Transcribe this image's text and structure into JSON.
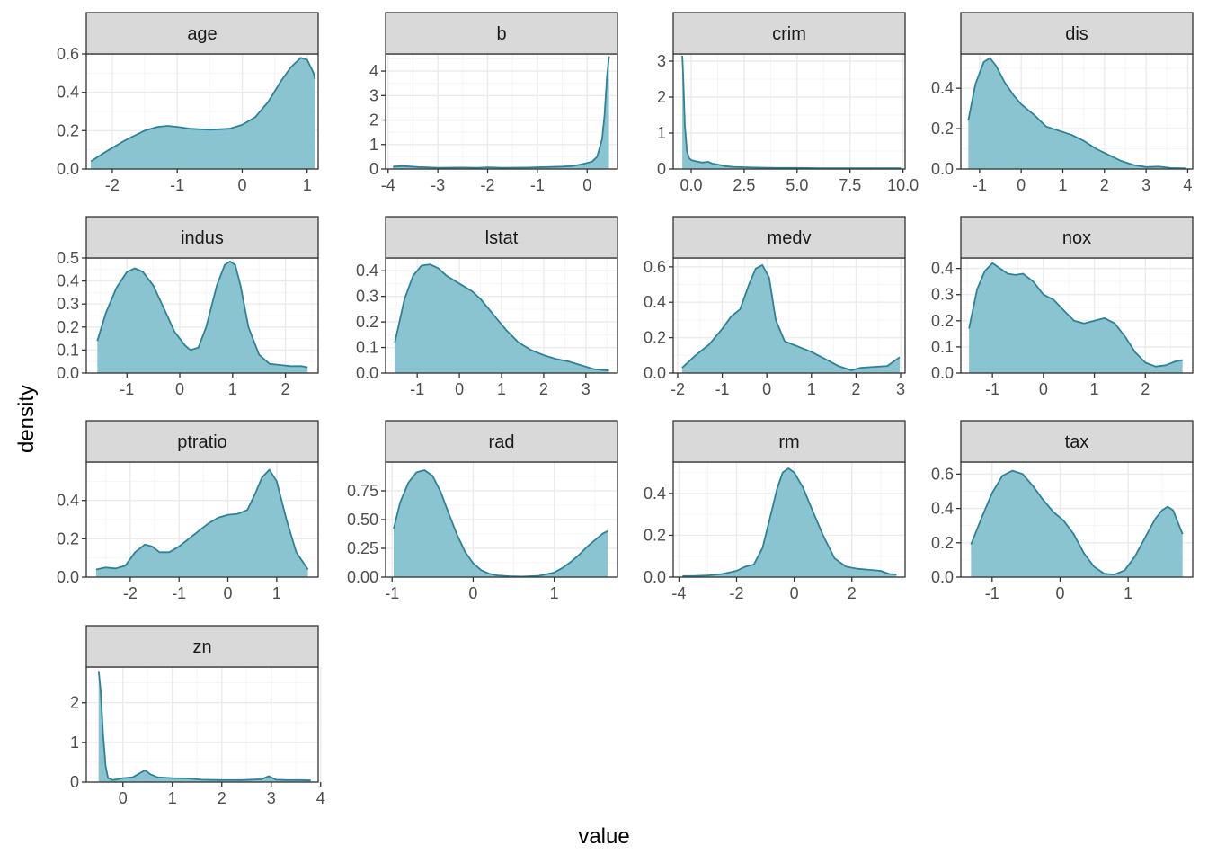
{
  "xlabel": "value",
  "ylabel": "density",
  "colors": {
    "fill": "#8BC4D1",
    "line": "#2E8196",
    "strip": "#D9D9D9",
    "border": "#333333",
    "grid_major": "#EBEBEB",
    "grid_minor": "#F5F5F5",
    "text": "#4D4D4D"
  },
  "chart_data": [
    {
      "type": "area",
      "title": "age",
      "xlim": [
        -2.4,
        1.17
      ],
      "ylim": [
        0,
        0.6
      ],
      "xticks": [
        -2,
        -1,
        0,
        1
      ],
      "xtick_labels": [
        "-2",
        "-1",
        "0",
        "1"
      ],
      "yticks": [
        0,
        0.2,
        0.4,
        0.6
      ],
      "ytick_labels": [
        "0.0",
        "0.2",
        "0.4",
        "0.6"
      ],
      "x": [
        -2.33,
        -2.1,
        -1.8,
        -1.5,
        -1.3,
        -1.15,
        -1.0,
        -0.8,
        -0.5,
        -0.2,
        0.0,
        0.2,
        0.4,
        0.6,
        0.75,
        0.9,
        1.0,
        1.1,
        1.12
      ],
      "y": [
        0.04,
        0.09,
        0.15,
        0.2,
        0.22,
        0.225,
        0.22,
        0.21,
        0.205,
        0.21,
        0.23,
        0.27,
        0.35,
        0.46,
        0.53,
        0.58,
        0.57,
        0.5,
        0.47
      ]
    },
    {
      "type": "area",
      "title": "b",
      "xlim": [
        -4.05,
        0.61
      ],
      "ylim": [
        0,
        4.7
      ],
      "xticks": [
        -4,
        -3,
        -2,
        -1,
        0
      ],
      "xtick_labels": [
        "-4",
        "-3",
        "-2",
        "-1",
        "0"
      ],
      "yticks": [
        0,
        1,
        2,
        3,
        4
      ],
      "ytick_labels": [
        "0",
        "1",
        "2",
        "3",
        "4"
      ],
      "x": [
        -3.9,
        -3.7,
        -3.4,
        -3.0,
        -2.5,
        -2.2,
        -2.0,
        -1.7,
        -1.2,
        -0.8,
        -0.5,
        -0.3,
        -0.1,
        0.0,
        0.1,
        0.2,
        0.3,
        0.35,
        0.4,
        0.44
      ],
      "y": [
        0.1,
        0.12,
        0.08,
        0.05,
        0.06,
        0.05,
        0.07,
        0.05,
        0.06,
        0.08,
        0.1,
        0.12,
        0.2,
        0.25,
        0.3,
        0.5,
        1.2,
        2.2,
        3.8,
        4.6
      ]
    },
    {
      "type": "area",
      "title": "crim",
      "xlim": [
        -0.85,
        10.1
      ],
      "ylim": [
        0,
        3.2
      ],
      "xticks": [
        0,
        2.5,
        5,
        7.5,
        10
      ],
      "xtick_labels": [
        "0.0",
        "2.5",
        "5.0",
        "7.5",
        "10.0"
      ],
      "yticks": [
        0,
        1,
        2,
        3
      ],
      "ytick_labels": [
        "0",
        "1",
        "2",
        "3"
      ],
      "x": [
        -0.42,
        -0.38,
        -0.3,
        -0.2,
        -0.1,
        0.0,
        0.2,
        0.5,
        0.8,
        1.0,
        1.3,
        1.6,
        2.0,
        2.5,
        3.0,
        4.0,
        5.0,
        6.0,
        7.0,
        8.0,
        9.0,
        9.9
      ],
      "y": [
        3.15,
        2.6,
        1.2,
        0.5,
        0.3,
        0.25,
        0.22,
        0.18,
        0.2,
        0.15,
        0.12,
        0.08,
        0.06,
        0.05,
        0.04,
        0.03,
        0.03,
        0.02,
        0.02,
        0.02,
        0.02,
        0.02
      ]
    },
    {
      "type": "area",
      "title": "dis",
      "xlim": [
        -1.45,
        4.12
      ],
      "ylim": [
        0,
        0.57
      ],
      "xticks": [
        -1,
        0,
        1,
        2,
        3,
        4
      ],
      "xtick_labels": [
        "-1",
        "0",
        "1",
        "2",
        "3",
        "4"
      ],
      "yticks": [
        0,
        0.2,
        0.4
      ],
      "ytick_labels": [
        "0.0",
        "0.2",
        "0.4"
      ],
      "x": [
        -1.27,
        -1.1,
        -0.9,
        -0.75,
        -0.6,
        -0.4,
        -0.2,
        0.0,
        0.3,
        0.6,
        0.9,
        1.2,
        1.5,
        1.8,
        2.1,
        2.4,
        2.7,
        3.0,
        3.3,
        3.6,
        3.96
      ],
      "y": [
        0.24,
        0.42,
        0.53,
        0.55,
        0.51,
        0.43,
        0.37,
        0.32,
        0.27,
        0.21,
        0.19,
        0.17,
        0.14,
        0.1,
        0.07,
        0.04,
        0.02,
        0.01,
        0.012,
        0.005,
        0.003
      ]
    },
    {
      "type": "area",
      "title": "indus",
      "xlim": [
        -1.77,
        2.62
      ],
      "ylim": [
        0,
        0.5
      ],
      "xticks": [
        -1,
        0,
        1,
        2
      ],
      "xtick_labels": [
        "-1",
        "0",
        "1",
        "2"
      ],
      "yticks": [
        0,
        0.1,
        0.2,
        0.3,
        0.4,
        0.5
      ],
      "ytick_labels": [
        "0.0",
        "0.1",
        "0.2",
        "0.3",
        "0.4",
        "0.5"
      ],
      "x": [
        -1.56,
        -1.4,
        -1.2,
        -1.0,
        -0.85,
        -0.7,
        -0.5,
        -0.3,
        -0.1,
        0.1,
        0.2,
        0.35,
        0.5,
        0.7,
        0.85,
        0.95,
        1.05,
        1.15,
        1.3,
        1.5,
        1.7,
        1.9,
        2.1,
        2.3,
        2.42
      ],
      "y": [
        0.14,
        0.26,
        0.37,
        0.44,
        0.455,
        0.44,
        0.38,
        0.28,
        0.18,
        0.12,
        0.1,
        0.11,
        0.2,
        0.38,
        0.47,
        0.485,
        0.47,
        0.38,
        0.2,
        0.08,
        0.04,
        0.035,
        0.03,
        0.03,
        0.025
      ]
    },
    {
      "type": "area",
      "title": "lstat",
      "xlim": [
        -1.75,
        3.75
      ],
      "ylim": [
        0,
        0.45
      ],
      "xticks": [
        -1,
        0,
        1,
        2,
        3
      ],
      "xtick_labels": [
        "-1",
        "0",
        "1",
        "2",
        "3"
      ],
      "yticks": [
        0,
        0.1,
        0.2,
        0.3,
        0.4
      ],
      "ytick_labels": [
        "0.0",
        "0.1",
        "0.2",
        "0.3",
        "0.4"
      ],
      "x": [
        -1.53,
        -1.3,
        -1.1,
        -0.9,
        -0.7,
        -0.5,
        -0.3,
        -0.1,
        0.1,
        0.3,
        0.5,
        0.8,
        1.1,
        1.4,
        1.7,
        2.0,
        2.3,
        2.6,
        2.9,
        3.2,
        3.55
      ],
      "y": [
        0.12,
        0.29,
        0.38,
        0.42,
        0.425,
        0.41,
        0.38,
        0.36,
        0.34,
        0.32,
        0.29,
        0.23,
        0.17,
        0.12,
        0.09,
        0.07,
        0.055,
        0.045,
        0.03,
        0.015,
        0.01
      ]
    },
    {
      "type": "area",
      "title": "medv",
      "xlim": [
        -2.1,
        3.1
      ],
      "ylim": [
        0,
        0.65
      ],
      "xticks": [
        -2,
        -1,
        0,
        1,
        2,
        3
      ],
      "xtick_labels": [
        "-2",
        "-1",
        "0",
        "1",
        "2",
        "3"
      ],
      "yticks": [
        0,
        0.2,
        0.4,
        0.6
      ],
      "ytick_labels": [
        "0.0",
        "0.2",
        "0.4",
        "0.6"
      ],
      "x": [
        -1.9,
        -1.6,
        -1.3,
        -1.0,
        -0.8,
        -0.6,
        -0.4,
        -0.25,
        -0.1,
        0.05,
        0.2,
        0.4,
        0.7,
        1.0,
        1.3,
        1.6,
        1.9,
        2.1,
        2.4,
        2.7,
        2.98
      ],
      "y": [
        0.03,
        0.1,
        0.16,
        0.25,
        0.32,
        0.36,
        0.5,
        0.59,
        0.61,
        0.54,
        0.3,
        0.18,
        0.15,
        0.12,
        0.08,
        0.04,
        0.015,
        0.03,
        0.035,
        0.04,
        0.09
      ]
    },
    {
      "type": "area",
      "title": "nox",
      "xlim": [
        -1.62,
        2.93
      ],
      "ylim": [
        0,
        0.44
      ],
      "xticks": [
        -1,
        0,
        1,
        2
      ],
      "xtick_labels": [
        "-1",
        "0",
        "1",
        "2"
      ],
      "yticks": [
        0,
        0.1,
        0.2,
        0.3,
        0.4
      ],
      "ytick_labels": [
        "0.0",
        "0.1",
        "0.2",
        "0.3",
        "0.4"
      ],
      "x": [
        -1.46,
        -1.3,
        -1.15,
        -1.0,
        -0.85,
        -0.7,
        -0.55,
        -0.4,
        -0.2,
        0.0,
        0.2,
        0.4,
        0.6,
        0.8,
        1.0,
        1.2,
        1.4,
        1.6,
        1.8,
        2.0,
        2.2,
        2.4,
        2.6,
        2.73
      ],
      "y": [
        0.17,
        0.32,
        0.39,
        0.42,
        0.4,
        0.38,
        0.375,
        0.38,
        0.35,
        0.3,
        0.28,
        0.24,
        0.2,
        0.19,
        0.2,
        0.21,
        0.19,
        0.14,
        0.08,
        0.04,
        0.025,
        0.03,
        0.045,
        0.05
      ]
    },
    {
      "type": "area",
      "title": "ptratio",
      "xlim": [
        -2.9,
        1.85
      ],
      "ylim": [
        0,
        0.6
      ],
      "xticks": [
        -2,
        -1,
        0,
        1
      ],
      "xtick_labels": [
        "-2",
        "-1",
        "0",
        "1"
      ],
      "yticks": [
        0,
        0.2,
        0.4
      ],
      "ytick_labels": [
        "0.0",
        "0.2",
        "0.4"
      ],
      "x": [
        -2.7,
        -2.5,
        -2.3,
        -2.1,
        -1.9,
        -1.7,
        -1.55,
        -1.4,
        -1.2,
        -1.0,
        -0.8,
        -0.6,
        -0.4,
        -0.2,
        0.0,
        0.2,
        0.4,
        0.55,
        0.7,
        0.85,
        1.0,
        1.2,
        1.4,
        1.64
      ],
      "y": [
        0.04,
        0.05,
        0.045,
        0.06,
        0.13,
        0.17,
        0.16,
        0.13,
        0.13,
        0.16,
        0.2,
        0.24,
        0.28,
        0.31,
        0.325,
        0.33,
        0.35,
        0.43,
        0.52,
        0.56,
        0.5,
        0.3,
        0.13,
        0.04
      ]
    },
    {
      "type": "area",
      "title": "rad",
      "xlim": [
        -1.08,
        1.78
      ],
      "ylim": [
        0,
        1.0
      ],
      "xticks": [
        -1,
        0,
        1
      ],
      "xtick_labels": [
        "-1",
        "0",
        "1"
      ],
      "yticks": [
        0,
        0.25,
        0.5,
        0.75
      ],
      "ytick_labels": [
        "0.00",
        "0.25",
        "0.50",
        "0.75"
      ],
      "x": [
        -0.98,
        -0.9,
        -0.8,
        -0.7,
        -0.6,
        -0.5,
        -0.4,
        -0.3,
        -0.2,
        -0.1,
        0.0,
        0.1,
        0.2,
        0.3,
        0.45,
        0.6,
        0.8,
        1.0,
        1.1,
        1.2,
        1.3,
        1.4,
        1.5,
        1.6,
        1.66
      ],
      "y": [
        0.42,
        0.65,
        0.82,
        0.91,
        0.93,
        0.88,
        0.74,
        0.55,
        0.37,
        0.22,
        0.12,
        0.06,
        0.03,
        0.015,
        0.008,
        0.005,
        0.01,
        0.04,
        0.08,
        0.13,
        0.19,
        0.26,
        0.32,
        0.38,
        0.4
      ]
    },
    {
      "type": "area",
      "title": "rm",
      "xlim": [
        -4.2,
        3.85
      ],
      "ylim": [
        0,
        0.55
      ],
      "xticks": [
        -4,
        -2,
        0,
        2
      ],
      "xtick_labels": [
        "-4",
        "-2",
        "0",
        "2"
      ],
      "yticks": [
        0,
        0.2,
        0.4
      ],
      "ytick_labels": [
        "0.0",
        "0.2",
        "0.4"
      ],
      "x": [
        -3.88,
        -3.5,
        -3.0,
        -2.5,
        -2.0,
        -1.7,
        -1.4,
        -1.1,
        -0.9,
        -0.6,
        -0.4,
        -0.2,
        0.0,
        0.3,
        0.6,
        1.0,
        1.4,
        1.8,
        2.2,
        2.6,
        3.0,
        3.3,
        3.55
      ],
      "y": [
        0.005,
        0.005,
        0.008,
        0.015,
        0.03,
        0.05,
        0.06,
        0.14,
        0.25,
        0.42,
        0.5,
        0.52,
        0.5,
        0.43,
        0.33,
        0.2,
        0.09,
        0.05,
        0.04,
        0.035,
        0.03,
        0.015,
        0.013
      ]
    },
    {
      "type": "area",
      "title": "tax",
      "xlim": [
        -1.46,
        1.95
      ],
      "ylim": [
        0,
        0.67
      ],
      "xticks": [
        -1,
        0,
        1
      ],
      "xtick_labels": [
        "-1",
        "0",
        "1"
      ],
      "yticks": [
        0,
        0.2,
        0.4,
        0.6
      ],
      "ytick_labels": [
        "0.0",
        "0.2",
        "0.4",
        "0.6"
      ],
      "x": [
        -1.31,
        -1.15,
        -1.0,
        -0.85,
        -0.7,
        -0.55,
        -0.4,
        -0.25,
        -0.1,
        0.05,
        0.2,
        0.35,
        0.5,
        0.65,
        0.8,
        0.95,
        1.1,
        1.25,
        1.4,
        1.5,
        1.58,
        1.66,
        1.75,
        1.8
      ],
      "y": [
        0.19,
        0.35,
        0.49,
        0.59,
        0.62,
        0.6,
        0.53,
        0.45,
        0.38,
        0.33,
        0.25,
        0.14,
        0.06,
        0.02,
        0.015,
        0.04,
        0.12,
        0.23,
        0.34,
        0.39,
        0.41,
        0.39,
        0.3,
        0.25
      ]
    },
    {
      "type": "area",
      "title": "zn",
      "xlim": [
        -0.74,
        3.95
      ],
      "ylim": [
        0,
        2.9
      ],
      "xticks": [
        0,
        1,
        2,
        3,
        4
      ],
      "xtick_labels": [
        "0",
        "1",
        "2",
        "3",
        "4"
      ],
      "yticks": [
        0,
        1,
        2
      ],
      "ytick_labels": [
        "0",
        "1",
        "2"
      ],
      "x": [
        -0.49,
        -0.45,
        -0.4,
        -0.35,
        -0.3,
        -0.2,
        0.0,
        0.2,
        0.35,
        0.45,
        0.55,
        0.7,
        1.0,
        1.3,
        1.6,
        2.0,
        2.4,
        2.8,
        2.95,
        3.1,
        3.3,
        3.6,
        3.8
      ],
      "y": [
        2.8,
        2.3,
        1.2,
        0.4,
        0.1,
        0.05,
        0.1,
        0.12,
        0.23,
        0.3,
        0.2,
        0.12,
        0.1,
        0.09,
        0.06,
        0.05,
        0.05,
        0.07,
        0.15,
        0.06,
        0.05,
        0.05,
        0.04
      ]
    }
  ]
}
